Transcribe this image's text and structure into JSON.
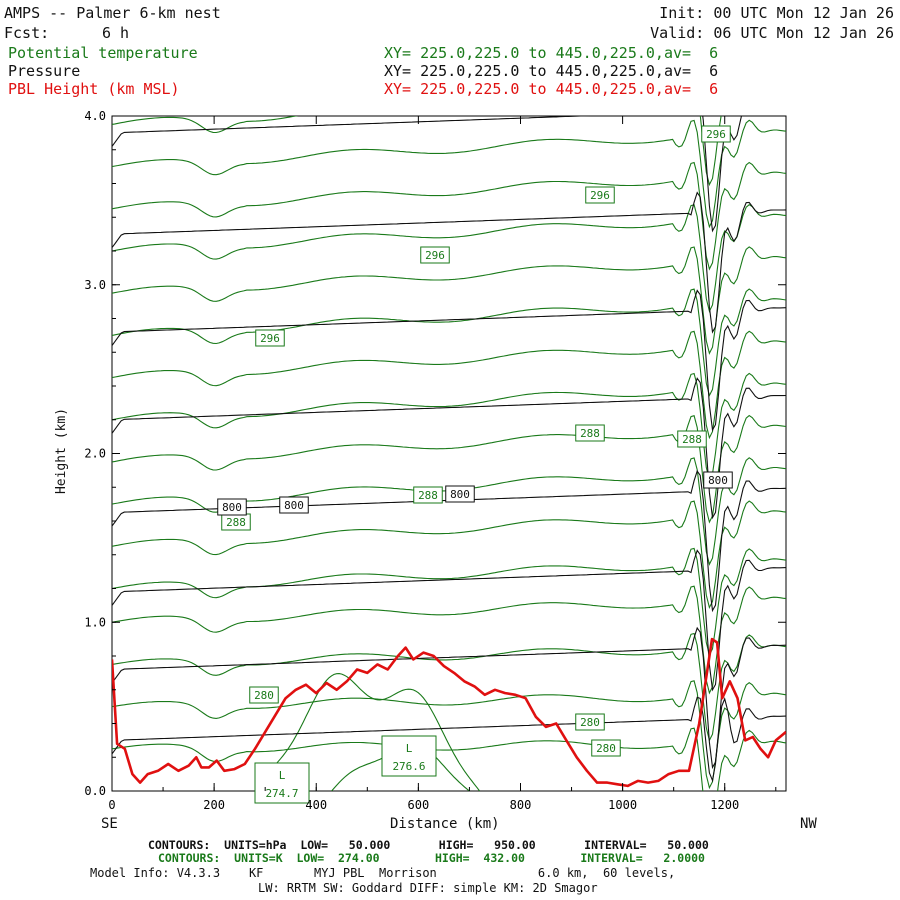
{
  "header": {
    "title": "AMPS -- Palmer 6-km nest",
    "fcst_label": "Fcst:",
    "fcst_value": "6 h",
    "init": "Init: 00 UTC Mon 12 Jan 26",
    "valid": "Valid: 06 UTC Mon 12 Jan 26"
  },
  "fields": [
    {
      "name": "Potential temperature",
      "xy": "XY= 225.0,225.0 to 445.0,225.0,av=  6",
      "color": "#1a7a1a"
    },
    {
      "name": "Pressure",
      "xy": "XY= 225.0,225.0 to 445.0,225.0,av=  6",
      "color": "#111111"
    },
    {
      "name": "PBL Height (km MSL)",
      "xy": "XY= 225.0,225.0 to 445.0,225.0,av=  6",
      "color": "#e01010"
    }
  ],
  "chart_data": {
    "type": "line",
    "xlabel": "Distance (km)",
    "ylabel": "Height (km)",
    "xlim": [
      0,
      1320
    ],
    "ylim": [
      0,
      4.0
    ],
    "x_ticks": [
      0,
      200,
      400,
      600,
      800,
      1000,
      1200
    ],
    "y_ticks": [
      "0.0",
      "1.0",
      "2.0",
      "3.0",
      "4.0"
    ],
    "x_ends": {
      "left": "SE",
      "right": "NW"
    },
    "pbl_height": {
      "name": "PBL Height (km MSL)",
      "color": "#e01010",
      "x": [
        0,
        10,
        25,
        40,
        55,
        70,
        90,
        110,
        130,
        150,
        165,
        175,
        190,
        205,
        220,
        240,
        260,
        280,
        300,
        320,
        340,
        360,
        380,
        400,
        420,
        440,
        460,
        480,
        500,
        520,
        540,
        560,
        575,
        590,
        610,
        630,
        650,
        670,
        690,
        710,
        730,
        750,
        770,
        790,
        810,
        830,
        850,
        870,
        890,
        910,
        930,
        950,
        970,
        990,
        1010,
        1030,
        1050,
        1070,
        1090,
        1110,
        1130,
        1150,
        1165,
        1175,
        1185,
        1195,
        1210,
        1225,
        1240,
        1255,
        1270,
        1285,
        1300,
        1320
      ],
      "y": [
        0.78,
        0.28,
        0.25,
        0.1,
        0.05,
        0.1,
        0.12,
        0.16,
        0.12,
        0.15,
        0.2,
        0.14,
        0.14,
        0.18,
        0.12,
        0.13,
        0.16,
        0.25,
        0.35,
        0.45,
        0.55,
        0.6,
        0.63,
        0.58,
        0.64,
        0.6,
        0.65,
        0.72,
        0.7,
        0.75,
        0.72,
        0.8,
        0.85,
        0.78,
        0.82,
        0.8,
        0.74,
        0.7,
        0.65,
        0.62,
        0.57,
        0.6,
        0.58,
        0.57,
        0.55,
        0.44,
        0.38,
        0.4,
        0.3,
        0.2,
        0.12,
        0.05,
        0.05,
        0.04,
        0.03,
        0.06,
        0.05,
        0.06,
        0.1,
        0.12,
        0.12,
        0.4,
        0.7,
        0.9,
        0.88,
        0.55,
        0.65,
        0.55,
        0.3,
        0.32,
        0.25,
        0.2,
        0.3,
        0.35
      ]
    },
    "pressure_contours": {
      "units": "hPa",
      "low": "50.000",
      "high": "950.00",
      "interval": "50.000",
      "color": "#111111",
      "labels": [
        "800",
        "800",
        "800",
        "800"
      ]
    },
    "theta_contours": {
      "units": "K",
      "low": "274.00",
      "high": "432.00",
      "interval": "2.0000",
      "color": "#1a7a1a",
      "labels": [
        "296",
        "296",
        "296",
        "296",
        "288",
        "288",
        "288",
        "288",
        "280",
        "280",
        "280"
      ],
      "low_center": {
        "mark": "L",
        "value": "276.6"
      },
      "low_center_2": {
        "mark": "L",
        "value": "274.7"
      }
    }
  },
  "footer": {
    "contours_p": "CONTOURS:  UNITS=hPa  LOW=   50.000       HIGH=   950.00       INTERVAL=   50.000",
    "contours_t": "CONTOURS:  UNITS=K  LOW=  274.00        HIGH=  432.00        INTERVAL=   2.0000",
    "model_info": "Model Info: V4.3.3    KF       MYJ PBL  Morrison              6.0 km,  60 levels,",
    "model_info2": "LW: RRTM SW: Goddard DIFF: simple KM: 2D Smagor"
  }
}
